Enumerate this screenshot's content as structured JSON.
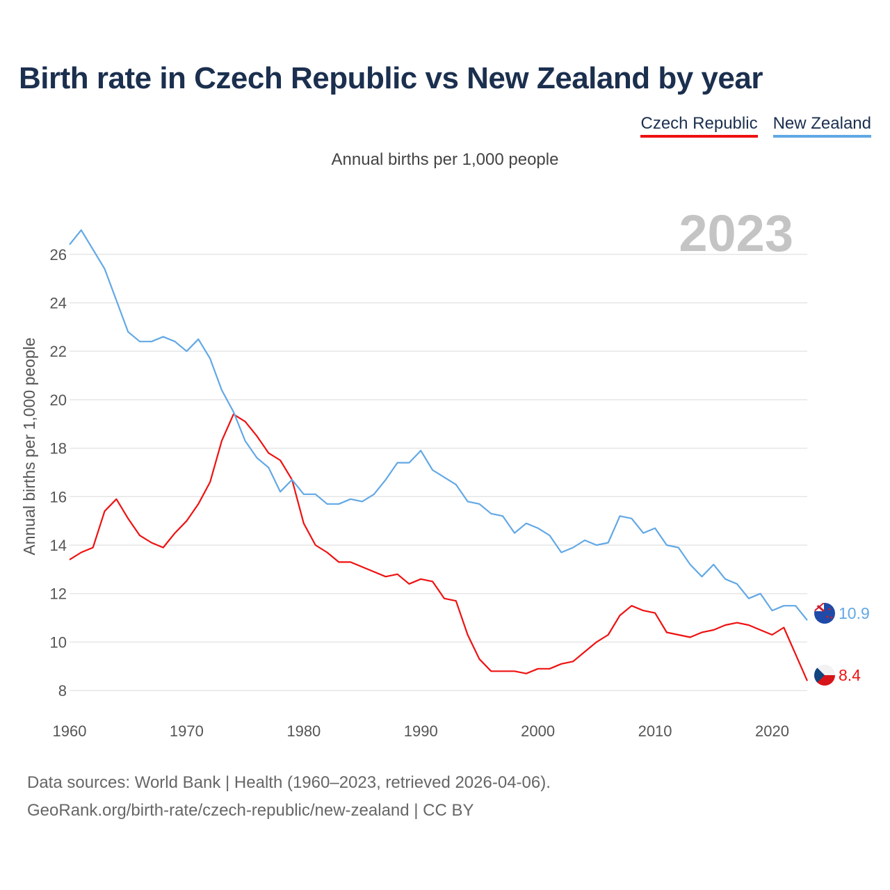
{
  "chart_data": {
    "type": "line",
    "title": "Birth rate in Czech Republic vs New Zealand by year",
    "subtitle": "Annual births per 1,000 people",
    "ylabel": "Annual births per 1,000 people",
    "xlabel": "",
    "year_watermark": "2023",
    "xlim": [
      1960,
      2023
    ],
    "ylim": [
      7,
      27.6
    ],
    "x_ticks": [
      1960,
      1970,
      1980,
      1990,
      2000,
      2010,
      2020
    ],
    "y_ticks": [
      8,
      10,
      12,
      14,
      16,
      18,
      20,
      22,
      24,
      26
    ],
    "x": [
      1960,
      1961,
      1962,
      1963,
      1964,
      1965,
      1966,
      1967,
      1968,
      1969,
      1970,
      1971,
      1972,
      1973,
      1974,
      1975,
      1976,
      1977,
      1978,
      1979,
      1980,
      1981,
      1982,
      1983,
      1984,
      1985,
      1986,
      1987,
      1988,
      1989,
      1990,
      1991,
      1992,
      1993,
      1994,
      1995,
      1996,
      1997,
      1998,
      1999,
      2000,
      2001,
      2002,
      2003,
      2004,
      2005,
      2006,
      2007,
      2008,
      2009,
      2010,
      2011,
      2012,
      2013,
      2014,
      2015,
      2016,
      2017,
      2018,
      2019,
      2020,
      2021,
      2022,
      2023
    ],
    "series": [
      {
        "name": "Czech Republic",
        "color": "#ee1111",
        "end_label": "8.4",
        "values": [
          13.4,
          13.7,
          13.9,
          15.4,
          15.9,
          15.1,
          14.4,
          14.1,
          13.9,
          14.5,
          15.0,
          15.7,
          16.6,
          18.3,
          19.4,
          19.1,
          18.5,
          17.8,
          17.5,
          16.7,
          14.9,
          14.0,
          13.7,
          13.3,
          13.3,
          13.1,
          12.9,
          12.7,
          12.8,
          12.4,
          12.6,
          12.5,
          11.8,
          11.7,
          10.3,
          9.3,
          8.8,
          8.8,
          8.8,
          8.7,
          8.9,
          8.9,
          9.1,
          9.2,
          9.6,
          10.0,
          10.3,
          11.1,
          11.5,
          11.3,
          11.2,
          10.4,
          10.3,
          10.2,
          10.4,
          10.5,
          10.7,
          10.8,
          10.7,
          10.5,
          10.3,
          10.6,
          9.5,
          8.4
        ]
      },
      {
        "name": "New Zealand",
        "color": "#62a8e5",
        "end_label": "10.9",
        "values": [
          26.4,
          27.0,
          26.2,
          25.4,
          24.1,
          22.8,
          22.4,
          22.4,
          22.6,
          22.4,
          22.0,
          22.5,
          21.7,
          20.4,
          19.5,
          18.3,
          17.6,
          17.2,
          16.2,
          16.7,
          16.1,
          16.1,
          15.7,
          15.7,
          15.9,
          15.8,
          16.1,
          16.7,
          17.4,
          17.4,
          17.9,
          17.1,
          16.8,
          16.5,
          15.8,
          15.7,
          15.3,
          15.2,
          14.5,
          14.9,
          14.7,
          14.4,
          13.7,
          13.9,
          14.2,
          14.0,
          14.1,
          15.2,
          15.1,
          14.5,
          14.7,
          14.0,
          13.9,
          13.2,
          12.7,
          13.2,
          12.6,
          12.4,
          11.8,
          12.0,
          11.3,
          11.5,
          11.5,
          10.9
        ]
      }
    ]
  },
  "footer": {
    "line1": "Data sources: World Bank | Health (1960–2023, retrieved 2026-04-06).",
    "line2": "GeoRank.org/birth-rate/czech-republic/new-zealand | CC BY"
  }
}
